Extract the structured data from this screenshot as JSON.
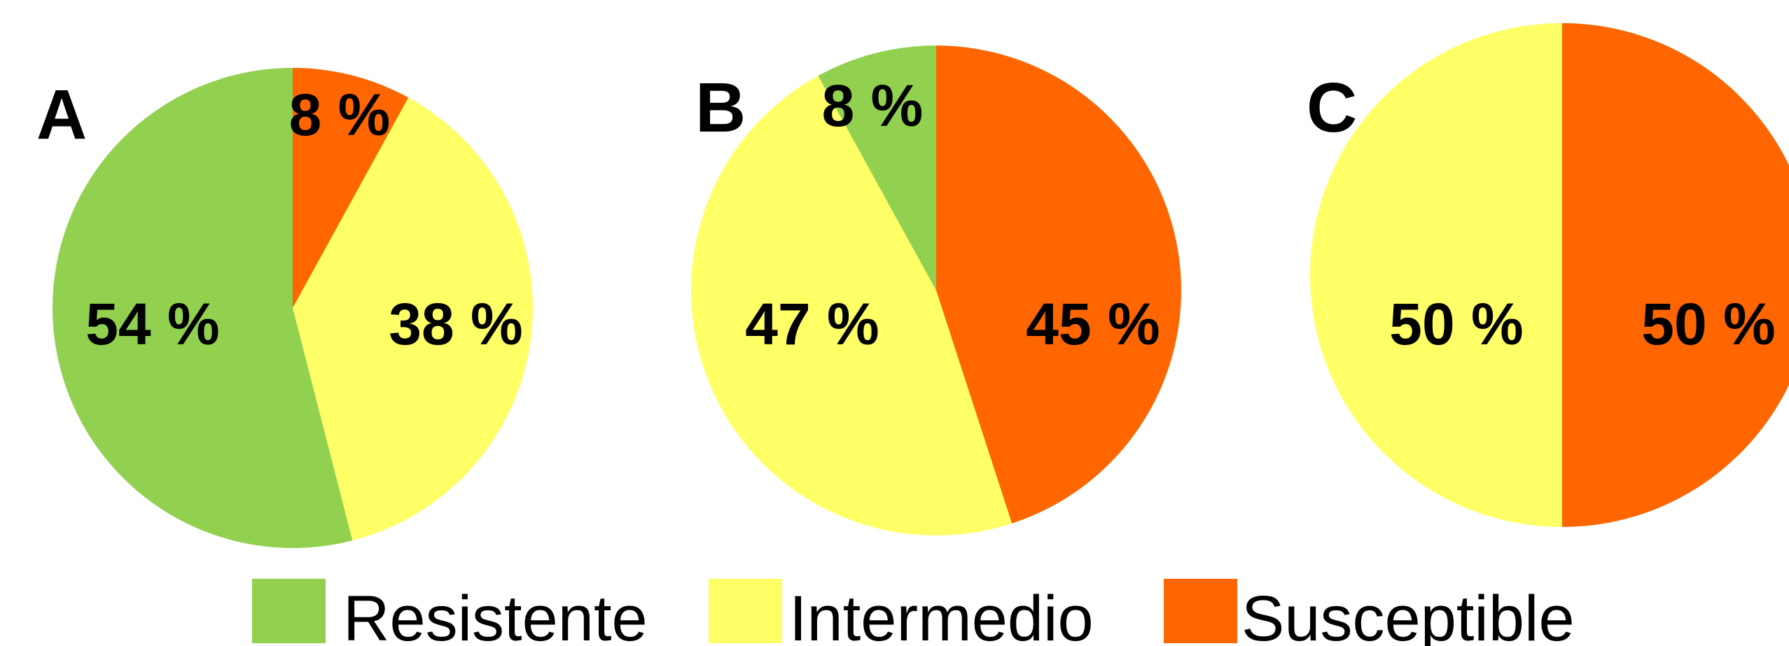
{
  "chart_data": [
    {
      "type": "pie",
      "panel": "A",
      "start": "top",
      "direction": "clockwise",
      "slices": [
        {
          "name": "Susceptible",
          "value": 8,
          "label": "8 %"
        },
        {
          "name": "Intermedio",
          "value": 38,
          "label": "38 %"
        },
        {
          "name": "Resistente",
          "value": 54,
          "label": "54 %"
        }
      ]
    },
    {
      "type": "pie",
      "panel": "B",
      "start": "top",
      "direction": "clockwise",
      "slices": [
        {
          "name": "Susceptible",
          "value": 45,
          "label": "45 %"
        },
        {
          "name": "Intermedio",
          "value": 47,
          "label": "47 %"
        },
        {
          "name": "Resistente",
          "value": 8,
          "label": "8 %"
        }
      ]
    },
    {
      "type": "pie",
      "panel": "C",
      "start": "top",
      "direction": "clockwise",
      "slices": [
        {
          "name": "Susceptible",
          "value": 50,
          "label": "50 %"
        },
        {
          "name": "Intermedio",
          "value": 50,
          "label": "50 %"
        }
      ]
    }
  ],
  "legend": {
    "placement": "bottom",
    "items": [
      {
        "name": "Resistente",
        "color": "#92d050"
      },
      {
        "name": "Intermedio",
        "color": "#ffff66"
      },
      {
        "name": "Susceptible",
        "color": "#ff6600"
      }
    ]
  },
  "colors": {
    "Resistente": "#92d050",
    "Intermedio": "#ffff66",
    "Susceptible": "#ff6600"
  }
}
